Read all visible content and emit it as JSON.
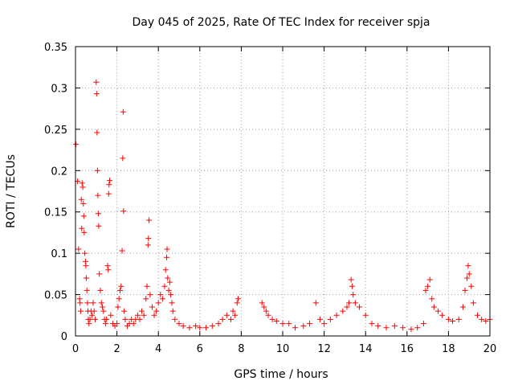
{
  "chart_data": {
    "type": "scatter",
    "title": "Day 045 of 2025, Rate Of TEC Index for receiver spja",
    "xlabel": "GPS time / hours",
    "ylabel": "ROTI / TECUs",
    "xlim": [
      0,
      20
    ],
    "ylim": [
      0,
      0.35
    ],
    "x_ticks": [
      0,
      2,
      4,
      6,
      8,
      10,
      12,
      14,
      16,
      18,
      20
    ],
    "x_tick_labels": [
      "0",
      "2",
      "4",
      "6",
      "8",
      "10",
      "12",
      "14",
      "16",
      "18",
      "20"
    ],
    "y_ticks": [
      0,
      0.05,
      0.1,
      0.15,
      0.2,
      0.25,
      0.3,
      0.35
    ],
    "y_tick_labels": [
      "0",
      "0.05",
      "0.1",
      "0.15",
      "0.2",
      "0.25",
      "0.3",
      "0.35"
    ],
    "grid": true,
    "marker": "+",
    "color": "#ff0000",
    "series": [
      {
        "name": "ROTI",
        "points": [
          [
            0.02,
            0.232
          ],
          [
            0.1,
            0.187
          ],
          [
            0.15,
            0.105
          ],
          [
            0.2,
            0.045
          ],
          [
            0.22,
            0.04
          ],
          [
            0.25,
            0.03
          ],
          [
            0.28,
            0.165
          ],
          [
            0.3,
            0.13
          ],
          [
            0.32,
            0.185
          ],
          [
            0.35,
            0.18
          ],
          [
            0.38,
            0.16
          ],
          [
            0.4,
            0.145
          ],
          [
            0.42,
            0.125
          ],
          [
            0.45,
            0.1
          ],
          [
            0.48,
            0.09
          ],
          [
            0.5,
            0.085
          ],
          [
            0.52,
            0.07
          ],
          [
            0.55,
            0.055
          ],
          [
            0.58,
            0.04
          ],
          [
            0.6,
            0.03
          ],
          [
            0.62,
            0.02
          ],
          [
            0.65,
            0.015
          ],
          [
            0.7,
            0.02
          ],
          [
            0.75,
            0.03
          ],
          [
            0.8,
            0.025
          ],
          [
            0.85,
            0.04
          ],
          [
            0.9,
            0.03
          ],
          [
            0.95,
            0.02
          ],
          [
            1.0,
            0.307
          ],
          [
            1.02,
            0.293
          ],
          [
            1.04,
            0.246
          ],
          [
            1.06,
            0.2
          ],
          [
            1.08,
            0.17
          ],
          [
            1.1,
            0.148
          ],
          [
            1.12,
            0.133
          ],
          [
            1.15,
            0.075
          ],
          [
            1.2,
            0.055
          ],
          [
            1.25,
            0.04
          ],
          [
            1.3,
            0.035
          ],
          [
            1.35,
            0.03
          ],
          [
            1.4,
            0.02
          ],
          [
            1.45,
            0.015
          ],
          [
            1.5,
            0.02
          ],
          [
            1.55,
            0.085
          ],
          [
            1.58,
            0.08
          ],
          [
            1.6,
            0.172
          ],
          [
            1.62,
            0.183
          ],
          [
            1.65,
            0.188
          ],
          [
            1.7,
            0.025
          ],
          [
            1.8,
            0.015
          ],
          [
            1.9,
            0.012
          ],
          [
            2.0,
            0.015
          ],
          [
            2.05,
            0.035
          ],
          [
            2.1,
            0.045
          ],
          [
            2.15,
            0.055
          ],
          [
            2.2,
            0.06
          ],
          [
            2.25,
            0.103
          ],
          [
            2.28,
            0.215
          ],
          [
            2.3,
            0.271
          ],
          [
            2.32,
            0.151
          ],
          [
            2.35,
            0.03
          ],
          [
            2.4,
            0.02
          ],
          [
            2.5,
            0.012
          ],
          [
            2.6,
            0.015
          ],
          [
            2.7,
            0.02
          ],
          [
            2.8,
            0.015
          ],
          [
            2.9,
            0.02
          ],
          [
            3.0,
            0.025
          ],
          [
            3.1,
            0.02
          ],
          [
            3.2,
            0.03
          ],
          [
            3.3,
            0.025
          ],
          [
            3.4,
            0.045
          ],
          [
            3.45,
            0.06
          ],
          [
            3.5,
            0.11
          ],
          [
            3.52,
            0.118
          ],
          [
            3.55,
            0.14
          ],
          [
            3.6,
            0.05
          ],
          [
            3.7,
            0.035
          ],
          [
            3.8,
            0.025
          ],
          [
            3.9,
            0.03
          ],
          [
            4.0,
            0.04
          ],
          [
            4.1,
            0.05
          ],
          [
            4.2,
            0.045
          ],
          [
            4.3,
            0.06
          ],
          [
            4.35,
            0.08
          ],
          [
            4.4,
            0.095
          ],
          [
            4.42,
            0.105
          ],
          [
            4.45,
            0.07
          ],
          [
            4.5,
            0.055
          ],
          [
            4.55,
            0.065
          ],
          [
            4.6,
            0.05
          ],
          [
            4.65,
            0.04
          ],
          [
            4.7,
            0.03
          ],
          [
            4.8,
            0.02
          ],
          [
            5.0,
            0.015
          ],
          [
            5.2,
            0.012
          ],
          [
            5.5,
            0.01
          ],
          [
            5.8,
            0.012
          ],
          [
            6.0,
            0.01
          ],
          [
            6.3,
            0.01
          ],
          [
            6.6,
            0.012
          ],
          [
            6.9,
            0.015
          ],
          [
            7.1,
            0.02
          ],
          [
            7.3,
            0.025
          ],
          [
            7.5,
            0.02
          ],
          [
            7.6,
            0.03
          ],
          [
            7.7,
            0.025
          ],
          [
            7.8,
            0.04
          ],
          [
            7.85,
            0.045
          ],
          [
            9.0,
            0.04
          ],
          [
            9.1,
            0.035
          ],
          [
            9.2,
            0.03
          ],
          [
            9.3,
            0.025
          ],
          [
            9.5,
            0.02
          ],
          [
            9.7,
            0.018
          ],
          [
            10.0,
            0.015
          ],
          [
            10.3,
            0.015
          ],
          [
            10.6,
            0.01
          ],
          [
            11.0,
            0.012
          ],
          [
            11.3,
            0.015
          ],
          [
            11.6,
            0.04
          ],
          [
            11.8,
            0.02
          ],
          [
            12.0,
            0.015
          ],
          [
            12.3,
            0.02
          ],
          [
            12.6,
            0.025
          ],
          [
            12.9,
            0.03
          ],
          [
            13.1,
            0.035
          ],
          [
            13.2,
            0.04
          ],
          [
            13.3,
            0.068
          ],
          [
            13.35,
            0.06
          ],
          [
            13.4,
            0.05
          ],
          [
            13.5,
            0.04
          ],
          [
            13.7,
            0.035
          ],
          [
            14.0,
            0.025
          ],
          [
            14.3,
            0.015
          ],
          [
            14.6,
            0.012
          ],
          [
            15.0,
            0.01
          ],
          [
            15.4,
            0.012
          ],
          [
            15.8,
            0.01
          ],
          [
            16.2,
            0.008
          ],
          [
            16.5,
            0.01
          ],
          [
            16.8,
            0.015
          ],
          [
            16.9,
            0.055
          ],
          [
            17.0,
            0.06
          ],
          [
            17.1,
            0.068
          ],
          [
            17.2,
            0.045
          ],
          [
            17.3,
            0.035
          ],
          [
            17.5,
            0.03
          ],
          [
            17.7,
            0.025
          ],
          [
            18.0,
            0.02
          ],
          [
            18.2,
            0.018
          ],
          [
            18.5,
            0.02
          ],
          [
            18.7,
            0.035
          ],
          [
            18.8,
            0.055
          ],
          [
            18.9,
            0.07
          ],
          [
            18.95,
            0.085
          ],
          [
            19.0,
            0.075
          ],
          [
            19.1,
            0.06
          ],
          [
            19.2,
            0.04
          ],
          [
            19.4,
            0.025
          ],
          [
            19.6,
            0.02
          ],
          [
            19.8,
            0.018
          ],
          [
            20.0,
            0.02
          ]
        ]
      }
    ]
  }
}
